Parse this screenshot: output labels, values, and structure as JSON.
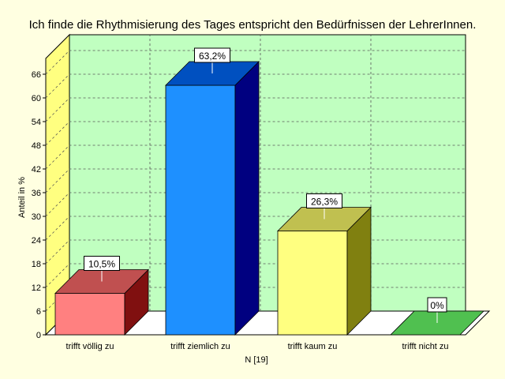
{
  "chart_data": {
    "type": "bar",
    "title": "Ich finde die Rhythmisierung des Tages entspricht den Bedürfnissen der LehrerInnen.",
    "xlabel": "N [19]",
    "ylabel": "Anteil in %",
    "categories": [
      "trifft völlig zu",
      "trifft ziemlich zu",
      "trifft kaum zu",
      "trifft nicht zu"
    ],
    "values": [
      10.5,
      63.2,
      26.3,
      0
    ],
    "value_labels": [
      "10,5%",
      "63,2%",
      "26,3%",
      "0%"
    ],
    "ylim": [
      0,
      70
    ],
    "yticks": [
      0,
      6,
      12,
      18,
      24,
      30,
      36,
      42,
      48,
      54,
      60,
      66
    ],
    "ytick_labels": [
      "0",
      "6",
      "12",
      "18",
      "24",
      "30",
      "36",
      "42",
      "48",
      "54",
      "60",
      "66"
    ],
    "grid": true,
    "three_d": true,
    "colors": {
      "background": "#ffffe1",
      "wall": "#c0ffc0",
      "side_wall": "#ffff80",
      "floor": "#ffffff",
      "grid": "#555555",
      "bars": [
        {
          "front": "#ff8080",
          "top": "#c05050",
          "side": "#801010"
        },
        {
          "front": "#1e90ff",
          "top": "#0050c0",
          "side": "#000080"
        },
        {
          "front": "#ffff80",
          "top": "#c0c050",
          "side": "#808010"
        },
        {
          "front": "#50c050",
          "top": "#50c050",
          "side": "#2a8a2a"
        }
      ]
    }
  }
}
